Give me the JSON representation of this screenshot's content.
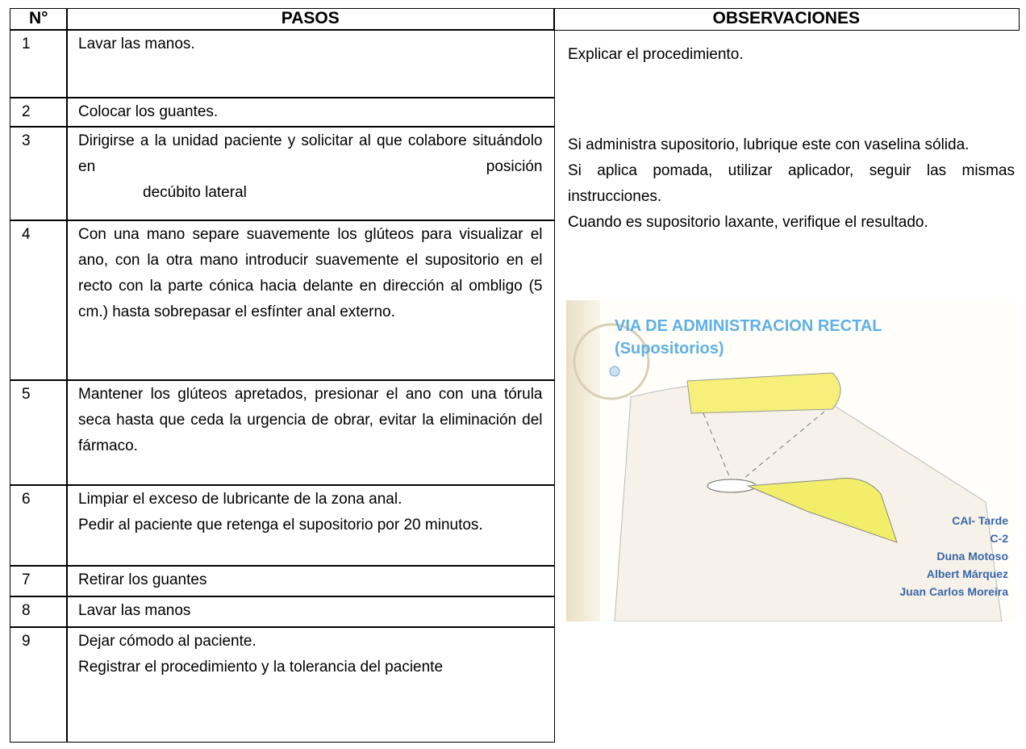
{
  "table": {
    "headers": [
      "N°",
      "PASOS",
      "OBSERVACIONES"
    ],
    "rows": [
      {
        "number": "1",
        "step": [
          "Lavar las manos."
        ]
      },
      {
        "number": "2",
        "step": [
          "Colocar los guantes."
        ]
      },
      {
        "number": "3",
        "step": [
          "Dirigirse a la unidad paciente y solicitar al que colabore situándolo en posición",
          "decúbito lateral"
        ]
      },
      {
        "number": "4",
        "step": [
          "Con una mano separe suavemente los glúteos para visualizar el ano, con la otra mano introducir suavemente el supositorio en el recto con la parte cónica hacia delante en dirección al ombligo (5 cm.) hasta sobrepasar el esfínter anal externo."
        ]
      },
      {
        "number": "5",
        "step": [
          "Mantener los glúteos apretados, presionar el ano con una tórula seca hasta que ceda la urgencia de obrar, evitar la eliminación del fármaco."
        ]
      },
      {
        "number": "6",
        "step": [
          "Limpiar el exceso de lubricante de la zona anal.",
          "Pedir al paciente que retenga el supositorio por 20 minutos."
        ]
      },
      {
        "number": "7",
        "step": [
          "Retirar los guantes"
        ]
      },
      {
        "number": "8",
        "step": [
          "Lavar las manos"
        ]
      },
      {
        "number": "9",
        "step": [
          "Dejar cómodo al paciente.",
          "Registrar el procedimiento y la tolerancia del paciente"
        ]
      }
    ]
  },
  "observations": {
    "first": "Explicar el procedimiento.",
    "paragraphs": [
      "Si administra supositorio, lubrique este con vaselina sólida.",
      "Si aplica pomada, utilizar aplicador, seguir las mismas instrucciones.",
      "Cuando es supositorio laxante, verifique el resultado."
    ]
  },
  "image": {
    "title": "VIA DE ADMINISTRACION RECTAL",
    "subtitle": "(Supositorios)",
    "credits": [
      "CAI- Tarde",
      "C-2",
      "Duna Motoso",
      "Albert Márquez",
      "Juan Carlos Moreira"
    ]
  }
}
